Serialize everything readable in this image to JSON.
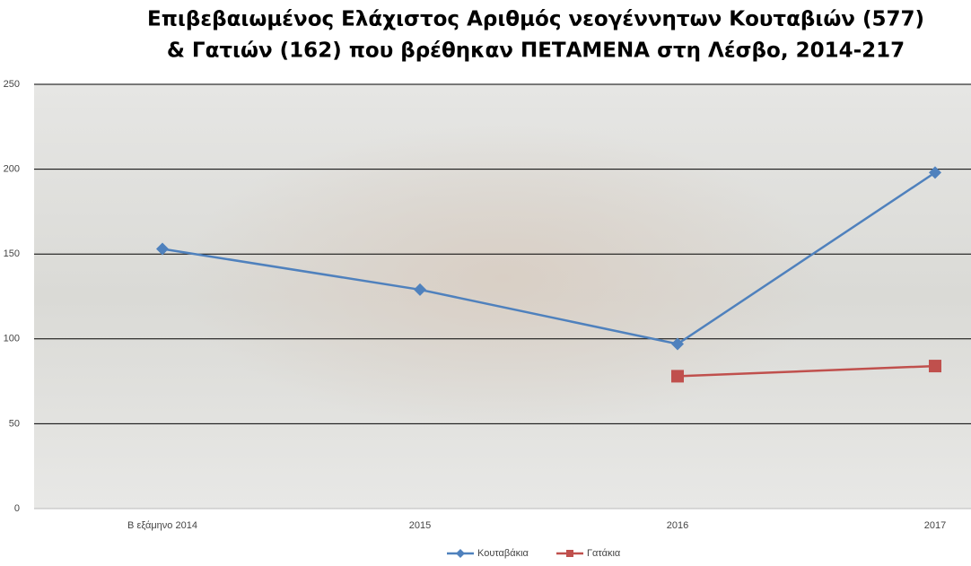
{
  "chart_data": {
    "type": "line",
    "title": [
      "Επιβεβαιωμένος Ελάχιστος Αριθμός νεογέννητων Κουταβιών (577)",
      "& Γατιών (162) που βρέθηκαν ΠΕΤΑΜΕΝΑ στη Λέσβο, 2014-217"
    ],
    "categories": [
      "Β εξάμηνο 2014",
      "2015",
      "2016",
      "2017"
    ],
    "series": [
      {
        "name": "Κουταβάκια",
        "color": "#4f81bd",
        "marker": "diamond",
        "values": [
          153,
          129,
          97,
          198
        ]
      },
      {
        "name": "Γατάκια",
        "color": "#c0504d",
        "marker": "square",
        "values": [
          null,
          null,
          78,
          84
        ]
      }
    ],
    "ylim": [
      0,
      250
    ],
    "yticks": [
      0,
      50,
      100,
      150,
      200,
      250
    ],
    "grid": true,
    "legend": "bottom"
  }
}
